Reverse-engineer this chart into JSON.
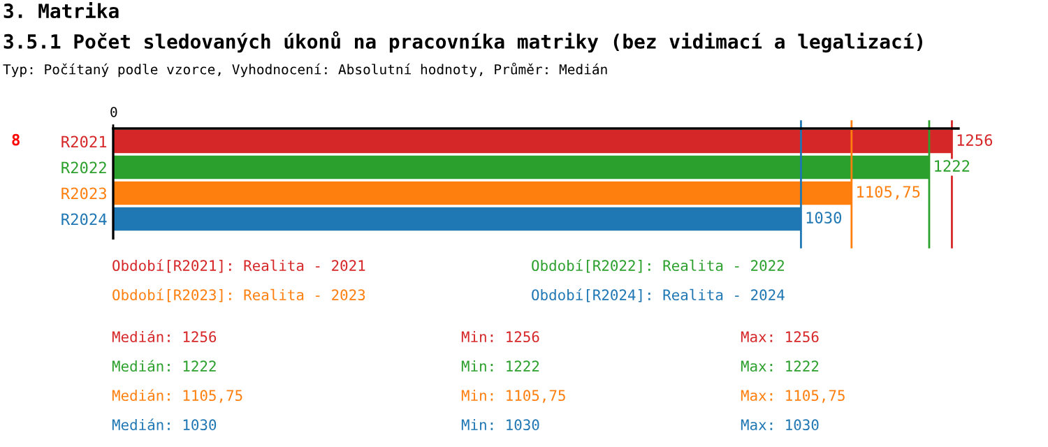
{
  "chart_data": {
    "type": "bar",
    "orientation": "horizontal",
    "title": "3. Matrika",
    "subtitle": "3.5.1 Počet sledovaných úkonů na pracovníka matriky (bez vidimací a legalizací)",
    "categories": [
      "R2021",
      "R2022",
      "R2023",
      "R2024"
    ],
    "values": [
      1256,
      1222,
      1105.75,
      1030
    ],
    "colors": [
      "#d62728",
      "#2ca02c",
      "#ff7f0e",
      "#1f77b4"
    ],
    "value_labels": [
      "1256",
      "1222",
      "1105,75",
      "1030"
    ],
    "xlim": [
      0,
      1266
    ],
    "grid": false,
    "ref_lines": [
      {
        "axis": "x",
        "value": 1256,
        "color": "#d62728"
      },
      {
        "axis": "x",
        "value": 1222,
        "color": "#2ca02c"
      },
      {
        "axis": "x",
        "value": 1105.75,
        "color": "#ff7f0e"
      },
      {
        "axis": "x",
        "value": 1030,
        "color": "#1f77b4"
      }
    ],
    "annotations": [
      "0",
      "Typ: Počítaný podle vzorce, Vyhodnocení: Absolutní hodnoty, Průměr: Medián",
      "8",
      "Období[R2021]: Realita - 2021",
      "Období[R2022]: Realita - 2022",
      "Období[R2023]: Realita - 2023",
      "Období[R2024]: Realita - 2024",
      "Medián: 1256",
      "Min: 1256",
      "Max: 1256",
      "Medián: 1222",
      "Min: 1222",
      "Max: 1222",
      "Medián: 1105,75",
      "Min: 1105,75",
      "Max: 1105,75",
      "Medián: 1030",
      "Min: 1030",
      "Max: 1030"
    ]
  }
}
